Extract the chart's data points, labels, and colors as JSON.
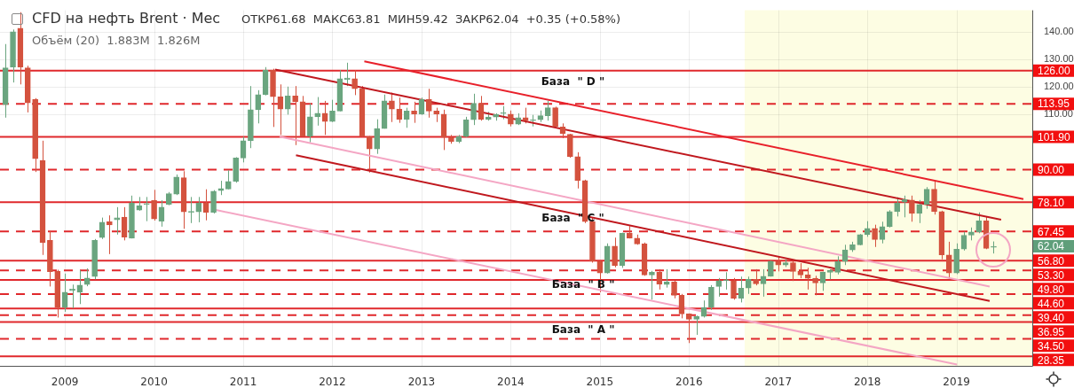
{
  "chart_data": {
    "type": "candlestick",
    "title": "CFD на нефть Brent · Мес",
    "subtitle": "ОТКР61.68  МАКС63.81  МИН59.42  ЗАКР62.04  +0.35 (+0.58%)",
    "x": [
      "2008-05",
      "2008-06",
      "2008-07",
      "2008-08",
      "2008-09",
      "2008-10",
      "2008-11",
      "2008-12",
      "2009-01",
      "2009-02",
      "2009-03",
      "2009-04",
      "2009-05",
      "2009-06",
      "2009-07",
      "2009-08",
      "2009-09",
      "2009-10",
      "2009-11",
      "2009-12",
      "2010-01",
      "2010-02",
      "2010-03",
      "2010-04",
      "2010-05",
      "2010-06",
      "2010-07",
      "2010-08",
      "2010-09",
      "2010-10",
      "2010-11",
      "2010-12",
      "2011-01",
      "2011-02",
      "2011-03",
      "2011-04",
      "2011-05",
      "2011-06",
      "2011-07",
      "2011-08",
      "2011-09",
      "2011-10",
      "2011-11",
      "2011-12",
      "2012-01",
      "2012-02",
      "2012-03",
      "2012-04",
      "2012-05",
      "2012-06",
      "2012-07",
      "2012-08",
      "2012-09",
      "2012-10",
      "2012-11",
      "2012-12",
      "2013-01",
      "2013-02",
      "2013-03",
      "2013-04",
      "2013-05",
      "2013-06",
      "2013-07",
      "2013-08",
      "2013-09",
      "2013-10",
      "2013-11",
      "2013-12",
      "2014-01",
      "2014-02",
      "2014-03",
      "2014-04",
      "2014-05",
      "2014-06",
      "2014-07",
      "2014-08",
      "2014-09",
      "2014-10",
      "2014-11",
      "2014-12",
      "2015-01",
      "2015-02",
      "2015-03",
      "2015-04",
      "2015-05",
      "2015-06",
      "2015-07",
      "2015-08",
      "2015-09",
      "2015-10",
      "2015-11",
      "2015-12",
      "2016-01",
      "2016-02",
      "2016-03",
      "2016-04",
      "2016-05",
      "2016-06",
      "2016-07",
      "2016-08",
      "2016-09",
      "2016-10",
      "2016-11",
      "2016-12",
      "2017-01",
      "2017-02",
      "2017-03",
      "2017-04",
      "2017-05",
      "2017-06",
      "2017-07",
      "2017-08",
      "2017-09",
      "2017-10",
      "2017-11",
      "2017-12",
      "2018-01",
      "2018-02",
      "2018-03",
      "2018-04",
      "2018-05",
      "2018-06",
      "2018-07",
      "2018-08",
      "2018-09",
      "2018-10",
      "2018-11",
      "2018-12",
      "2019-01",
      "2019-02",
      "2019-03",
      "2019-04",
      "2019-05",
      "2019-06"
    ],
    "ohlc": [
      [
        113.6,
        135.7,
        108.9,
        127.0
      ],
      [
        127.3,
        141.0,
        121.7,
        140.2
      ],
      [
        141.5,
        147.3,
        121.0,
        127.3
      ],
      [
        127.0,
        127.8,
        110.8,
        114.3
      ],
      [
        115.6,
        116.0,
        89.1,
        93.9
      ],
      [
        93.3,
        100.5,
        58.9,
        63.4
      ],
      [
        64.2,
        67.6,
        47.4,
        52.8
      ],
      [
        52.9,
        53.5,
        36.1,
        39.8
      ],
      [
        39.8,
        52.1,
        38.2,
        45.3
      ],
      [
        45.9,
        48.1,
        39.5,
        46.5
      ],
      [
        45.3,
        53.3,
        41.0,
        47.9
      ],
      [
        48.1,
        54.0,
        47.5,
        50.5
      ],
      [
        51.0,
        64.7,
        50.0,
        64.2
      ],
      [
        65.2,
        72.5,
        64.7,
        70.8
      ],
      [
        71.0,
        73.3,
        59.2,
        69.8
      ],
      [
        71.7,
        76.3,
        66.3,
        72.4
      ],
      [
        72.7,
        76.3,
        64.2,
        65.4
      ],
      [
        65.0,
        80.5,
        64.9,
        77.8
      ],
      [
        75.2,
        80.0,
        75.0,
        76.8
      ],
      [
        77.3,
        80.0,
        71.2,
        77.6
      ],
      [
        78.7,
        82.6,
        71.4,
        72.0
      ],
      [
        71.2,
        78.8,
        69.2,
        76.3
      ],
      [
        77.3,
        81.8,
        77.0,
        81.2
      ],
      [
        81.0,
        88.2,
        80.7,
        87.3
      ],
      [
        87.0,
        89.4,
        68.4,
        74.6
      ],
      [
        74.4,
        80.0,
        70.5,
        74.8
      ],
      [
        74.6,
        80.0,
        70.8,
        77.8
      ],
      [
        77.8,
        82.8,
        71.5,
        74.4
      ],
      [
        74.4,
        82.5,
        74.0,
        82.1
      ],
      [
        82.3,
        85.9,
        80.7,
        83.1
      ],
      [
        82.9,
        89.7,
        82.8,
        85.7
      ],
      [
        85.7,
        94.5,
        85.2,
        94.2
      ],
      [
        94.2,
        102.0,
        92.6,
        100.5
      ],
      [
        100.5,
        120.4,
        97.8,
        111.8
      ],
      [
        111.8,
        118.9,
        106.8,
        117.3
      ],
      [
        117.3,
        127.3,
        117.0,
        126.2
      ],
      [
        126.2,
        126.7,
        105.5,
        116.5
      ],
      [
        116.5,
        121.0,
        102.6,
        112.0
      ],
      [
        112.0,
        120.2,
        110.0,
        116.8
      ],
      [
        116.8,
        120.4,
        98.9,
        114.7
      ],
      [
        114.7,
        116.8,
        102.0,
        102.2
      ],
      [
        102.2,
        114.1,
        99.9,
        109.2
      ],
      [
        109.2,
        116.4,
        106.0,
        110.5
      ],
      [
        110.5,
        115.0,
        102.6,
        107.5
      ],
      [
        107.5,
        115.4,
        107.3,
        111.3
      ],
      [
        111.3,
        126.2,
        111.2,
        123.1
      ],
      [
        122.8,
        128.9,
        120.4,
        123.3
      ],
      [
        123.1,
        126.2,
        117.1,
        119.4
      ],
      [
        119.4,
        120.4,
        101.9,
        102.0
      ],
      [
        102.0,
        102.2,
        88.9,
        97.5
      ],
      [
        97.5,
        108.3,
        95.7,
        104.9
      ],
      [
        104.9,
        117.3,
        104.9,
        115.0
      ],
      [
        115.0,
        118.0,
        107.3,
        112.0
      ],
      [
        112.0,
        116.2,
        107.0,
        108.3
      ],
      [
        108.3,
        112.5,
        105.2,
        111.3
      ],
      [
        111.3,
        114.7,
        107.0,
        110.2
      ],
      [
        110.2,
        116.2,
        109.9,
        115.6
      ],
      [
        115.6,
        119.4,
        108.9,
        111.3
      ],
      [
        111.3,
        112.5,
        107.3,
        110.2
      ],
      [
        110.2,
        111.8,
        97.1,
        101.7
      ],
      [
        101.7,
        102.6,
        99.4,
        100.2
      ],
      [
        100.2,
        102.6,
        99.6,
        102.0
      ],
      [
        102.0,
        109.2,
        101.8,
        108.1
      ],
      [
        108.1,
        117.6,
        106.2,
        114.1
      ],
      [
        114.1,
        116.8,
        107.8,
        108.3
      ],
      [
        108.3,
        111.0,
        107.8,
        109.1
      ],
      [
        109.1,
        110.5,
        107.8,
        110.1
      ],
      [
        110.4,
        113.1,
        108.3,
        110.6
      ],
      [
        110.2,
        111.5,
        105.7,
        106.5
      ],
      [
        106.5,
        110.5,
        106.2,
        108.9
      ],
      [
        108.9,
        112.5,
        106.8,
        107.8
      ],
      [
        107.8,
        109.9,
        105.7,
        108.1
      ],
      [
        108.1,
        111.5,
        107.3,
        109.6
      ],
      [
        109.6,
        115.0,
        107.8,
        112.5
      ],
      [
        112.5,
        112.9,
        105.5,
        105.7
      ],
      [
        105.5,
        106.8,
        101.4,
        103.1
      ],
      [
        102.8,
        103.0,
        94.3,
        94.7
      ],
      [
        94.7,
        96.3,
        83.1,
        86.0
      ],
      [
        86.0,
        86.3,
        70.5,
        71.0
      ],
      [
        71.0,
        72.6,
        56.1,
        56.6
      ],
      [
        56.6,
        56.8,
        45.3,
        52.3
      ],
      [
        52.3,
        63.1,
        52.1,
        62.1
      ],
      [
        62.1,
        65.2,
        54.4,
        55.0
      ],
      [
        55.0,
        67.0,
        54.2,
        66.8
      ],
      [
        66.8,
        69.4,
        64.9,
        65.0
      ],
      [
        65.0,
        66.3,
        62.6,
        62.9
      ],
      [
        62.9,
        63.4,
        51.3,
        51.6
      ],
      [
        51.6,
        53.1,
        42.6,
        52.6
      ],
      [
        52.6,
        53.7,
        46.3,
        48.2
      ],
      [
        48.1,
        53.7,
        47.0,
        49.1
      ],
      [
        49.1,
        49.5,
        43.1,
        44.2
      ],
      [
        44.2,
        44.7,
        35.8,
        37.4
      ],
      [
        37.4,
        37.6,
        26.8,
        35.5
      ],
      [
        35.5,
        36.8,
        29.8,
        36.5
      ],
      [
        36.5,
        42.3,
        36.1,
        39.8
      ],
      [
        39.8,
        47.9,
        38.9,
        47.1
      ],
      [
        47.4,
        50.5,
        43.7,
        49.5
      ],
      [
        49.5,
        52.6,
        46.3,
        49.7
      ],
      [
        49.5,
        50.5,
        42.6,
        43.1
      ],
      [
        43.1,
        51.0,
        41.6,
        46.8
      ],
      [
        46.8,
        51.0,
        44.7,
        50.0
      ],
      [
        50.0,
        53.7,
        47.8,
        48.4
      ],
      [
        48.4,
        53.7,
        43.7,
        51.1
      ],
      [
        51.1,
        56.8,
        51.0,
        56.6
      ],
      [
        56.6,
        58.3,
        52.9,
        55.2
      ],
      [
        55.2,
        57.3,
        54.5,
        56.1
      ],
      [
        56.1,
        57.1,
        49.4,
        52.9
      ],
      [
        52.9,
        55.9,
        50.4,
        51.6
      ],
      [
        51.6,
        54.2,
        46.3,
        50.4
      ],
      [
        50.4,
        51.3,
        44.2,
        48.7
      ],
      [
        48.7,
        52.8,
        45.8,
        52.6
      ],
      [
        52.6,
        53.7,
        50.0,
        53.3
      ],
      [
        52.6,
        58.4,
        51.8,
        56.5
      ],
      [
        56.5,
        62.6,
        55.2,
        60.7
      ],
      [
        60.7,
        63.7,
        60.0,
        62.6
      ],
      [
        62.6,
        66.5,
        62.4,
        66.3
      ],
      [
        66.3,
        71.2,
        65.5,
        68.6
      ],
      [
        68.6,
        69.9,
        61.8,
        64.5
      ],
      [
        64.5,
        71.0,
        63.1,
        69.2
      ],
      [
        69.2,
        75.2,
        68.9,
        74.7
      ],
      [
        74.7,
        79.9,
        72.9,
        77.8
      ],
      [
        78.1,
        80.5,
        72.6,
        79.1
      ],
      [
        78.9,
        80.5,
        71.0,
        74.0
      ],
      [
        74.0,
        78.9,
        70.5,
        77.3
      ],
      [
        77.3,
        83.6,
        75.7,
        82.8
      ],
      [
        82.8,
        86.0,
        73.6,
        74.7
      ],
      [
        74.7,
        75.0,
        57.3,
        58.9
      ],
      [
        58.9,
        63.7,
        50.0,
        52.3
      ],
      [
        52.3,
        63.1,
        51.9,
        61.0
      ],
      [
        61.0,
        67.3,
        60.5,
        66.1
      ],
      [
        66.1,
        68.9,
        64.2,
        67.3
      ],
      [
        67.3,
        74.4,
        66.8,
        71.3
      ],
      [
        71.3,
        72.9,
        61.0,
        61.3
      ],
      [
        61.68,
        63.81,
        59.42,
        62.04
      ]
    ],
    "colors": [
      "#6aa57f",
      "#6aa57f",
      "#d4523e",
      "#d4523e",
      "#d4523e",
      "#d4523e",
      "#d4523e",
      "#d4523e",
      "#6aa57f",
      "#6aa57f",
      "#6aa57f",
      "#6aa57f",
      "#6aa57f",
      "#6aa57f",
      "#d4523e",
      "#6aa57f",
      "#d4523e",
      "#6aa57f",
      "#6aa57f",
      "#6aa57f",
      "#d4523e",
      "#6aa57f",
      "#6aa57f",
      "#6aa57f",
      "#d4523e",
      "#6aa57f",
      "#6aa57f",
      "#d4523e",
      "#6aa57f",
      "#6aa57f",
      "#6aa57f",
      "#6aa57f",
      "#6aa57f",
      "#6aa57f",
      "#6aa57f",
      "#6aa57f",
      "#d4523e",
      "#d4523e",
      "#6aa57f",
      "#d4523e",
      "#d4523e",
      "#6aa57f",
      "#6aa57f",
      "#d4523e",
      "#6aa57f",
      "#6aa57f",
      "#6aa57f",
      "#d4523e",
      "#d4523e",
      "#d4523e",
      "#6aa57f",
      "#6aa57f",
      "#d4523e",
      "#d4523e",
      "#6aa57f",
      "#d4523e",
      "#6aa57f",
      "#d4523e",
      "#d4523e",
      "#d4523e",
      "#d4523e",
      "#6aa57f",
      "#6aa57f",
      "#6aa57f",
      "#d4523e",
      "#6aa57f",
      "#6aa57f",
      "#6aa57f",
      "#d4523e",
      "#6aa57f",
      "#d4523e",
      "#6aa57f",
      "#6aa57f",
      "#6aa57f",
      "#d4523e",
      "#d4523e",
      "#d4523e",
      "#d4523e",
      "#d4523e",
      "#d4523e",
      "#d4523e",
      "#6aa57f",
      "#d4523e",
      "#6aa57f",
      "#d4523e",
      "#d4523e",
      "#d4523e",
      "#6aa57f",
      "#d4523e",
      "#6aa57f",
      "#d4523e",
      "#d4523e",
      "#d4523e",
      "#6aa57f",
      "#6aa57f",
      "#6aa57f",
      "#6aa57f",
      "#6aa57f",
      "#d4523e",
      "#6aa57f",
      "#6aa57f",
      "#d4523e",
      "#6aa57f",
      "#6aa57f",
      "#d4523e",
      "#6aa57f",
      "#d4523e",
      "#d4523e",
      "#d4523e",
      "#d4523e",
      "#6aa57f",
      "#6aa57f",
      "#6aa57f",
      "#6aa57f",
      "#6aa57f",
      "#6aa57f",
      "#6aa57f",
      "#d4523e",
      "#6aa57f",
      "#6aa57f",
      "#6aa57f",
      "#6aa57f",
      "#d4523e",
      "#6aa57f",
      "#6aa57f",
      "#d4523e",
      "#d4523e",
      "#d4523e",
      "#6aa57f",
      "#6aa57f",
      "#6aa57f",
      "#6aa57f",
      "#d4523e",
      "#6aa57f"
    ],
    "series": [
      {
        "type": "line",
        "x": [
          "2012-05-10",
          "2019-10-01"
        ],
        "values": [
          129.4,
          79.2
        ],
        "color": "#e8202a"
      },
      {
        "type": "line",
        "x": [
          "2011-05-10",
          "2019-07-01"
        ],
        "values": [
          126.4,
          71.7
        ],
        "color": "#c0181e"
      },
      {
        "type": "line",
        "x": [
          "2011-08-04",
          "2019-05-15"
        ],
        "values": [
          95.2,
          42.1
        ],
        "color": "#c0181e"
      },
      {
        "type": "line",
        "x": [
          "2011-05-28",
          "2019-05-15"
        ],
        "values": [
          102.0,
          47.4
        ],
        "color": "#f4a6c4"
      },
      {
        "type": "line",
        "x": [
          "2010-08-29",
          "2019-01-03"
        ],
        "values": [
          75.5,
          19.0
        ],
        "color": "#f4a6c4"
      }
    ],
    "xlim": [
      "2008-04-09",
      "2019-11-07"
    ],
    "xticks": [
      "2009",
      "2010",
      "2011",
      "2012",
      "2013",
      "2014",
      "2015",
      "2016",
      "2017",
      "2018",
      "2019"
    ],
    "ylim": [
      18.5,
      148
    ],
    "yticks": [
      {
        "value": 110,
        "label": "110.00"
      },
      {
        "value": 120,
        "label": "120.00"
      },
      {
        "value": 130,
        "label": "130.00"
      },
      {
        "value": 140,
        "label": "140.00"
      }
    ],
    "grid": true,
    "bands": [
      {
        "axis": "x",
        "from": "2016-08-16",
        "to": "2019-11-07",
        "color": "#fdfde3"
      }
    ],
    "value_labels": [
      null,
      null,
      null,
      null,
      null,
      null,
      null,
      null,
      null,
      null,
      null,
      null,
      null,
      null,
      null,
      null,
      null,
      null,
      null,
      null,
      null,
      null,
      null,
      null,
      null,
      null,
      null,
      null,
      null,
      null,
      null,
      null,
      null,
      null,
      null,
      null,
      null,
      null,
      null,
      null,
      null,
      null,
      null,
      null,
      null,
      null,
      null,
      null,
      null,
      null,
      null,
      null,
      null,
      null,
      null,
      null,
      null,
      null,
      null,
      null,
      null,
      null,
      null,
      null,
      null,
      null,
      null,
      null,
      null,
      null,
      null,
      null,
      null,
      null,
      null,
      null,
      null,
      null,
      null,
      null,
      null,
      null,
      null,
      null,
      null,
      null,
      null,
      null,
      null,
      null,
      null,
      null,
      null,
      null,
      null,
      null,
      null,
      null,
      null,
      null,
      null,
      null,
      null,
      null,
      null,
      null,
      null,
      null,
      null,
      null,
      null,
      null,
      null,
      null,
      null,
      null,
      null,
      null,
      null,
      null,
      null,
      null,
      null,
      null,
      null,
      null,
      null,
      null,
      null,
      null,
      null,
      null,
      null,
      "62.04"
    ],
    "ref_lines": [
      {
        "axis": "y",
        "value": 126,
        "label": "126.00",
        "color": "#e0282c",
        "line_style": "solid"
      },
      {
        "axis": "y",
        "value": 113.95,
        "label": "113.95",
        "color": "#e0282c",
        "line_style": "dashed"
      },
      {
        "axis": "y",
        "value": 101.9,
        "label": "101.90",
        "color": "#e0282c",
        "line_style": "solid"
      },
      {
        "axis": "y",
        "value": 90,
        "label": "90.00",
        "color": "#e0282c",
        "line_style": "dashed"
      },
      {
        "axis": "y",
        "value": 78.1,
        "label": "78.10",
        "color": "#e0282c",
        "line_style": "solid"
      },
      {
        "axis": "y",
        "value": 67.45,
        "label": "67.45",
        "color": "#e0282c",
        "line_style": "dashed"
      },
      {
        "axis": "y",
        "value": 56.8,
        "label": "56.80",
        "color": "#e0282c",
        "line_style": "solid"
      },
      {
        "axis": "y",
        "value": 53.3,
        "label": "53.30",
        "color": "#e0282c",
        "line_style": "dashed"
      },
      {
        "axis": "y",
        "value": 49.8,
        "label": "49.80",
        "color": "#e0282c",
        "line_style": "solid"
      },
      {
        "axis": "y",
        "value": 44.6,
        "label": "44.60",
        "color": "#e0282c",
        "line_style": "dashed"
      },
      {
        "axis": "y",
        "value": 39.4,
        "label": "39.40",
        "color": "#e0282c",
        "line_style": "solid"
      },
      {
        "axis": "y",
        "value": 36.95,
        "label": "36.95",
        "color": "#e0282c",
        "line_style": "dashed"
      },
      {
        "axis": "y",
        "value": 34.5,
        "label": "34.50",
        "color": "#e0282c",
        "line_style": "solid"
      },
      {
        "axis": "y",
        "value": 28.35,
        "label": "28.35",
        "color": "#e0282c",
        "line_style": "dashed"
      },
      {
        "axis": "y",
        "value": 22,
        "color": "#e0282c",
        "line_style": "solid"
      }
    ],
    "annotations": [
      "Объём (20)  1.883M  1.826M",
      "База  \" D \"",
      "База  \" C \"",
      "База  \" B \"",
      "База  \" A \""
    ]
  }
}
